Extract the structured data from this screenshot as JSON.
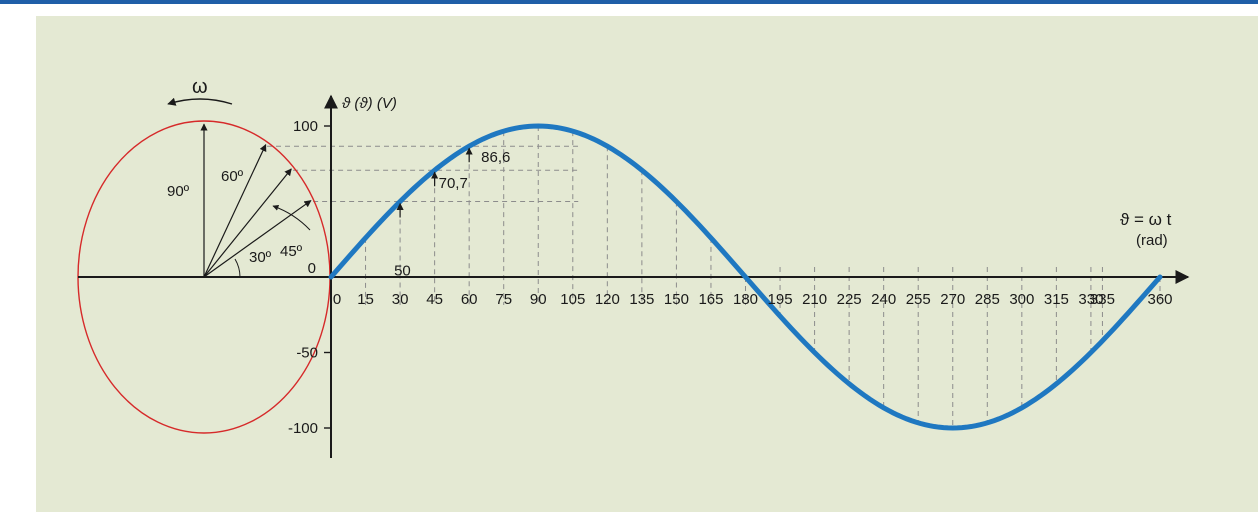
{
  "colors": {
    "frame_rule": "#1f5fa8",
    "panel_background": "#e4e9d3",
    "circle": "#d62a2a",
    "sine_wave": "#1f78c1",
    "axes": "#1a1a1a",
    "guide_lines": "#8c8c8c"
  },
  "phasor": {
    "omega_symbol": "ω",
    "rotation_arrow": "curved-arrow-icon",
    "angles": [
      {
        "deg": 90,
        "label": "90º"
      },
      {
        "deg": 60,
        "label": "60º"
      },
      {
        "deg": 45,
        "label": "45º"
      },
      {
        "deg": 30,
        "label": "30º"
      }
    ]
  },
  "chart_data": {
    "type": "line",
    "function": "100·sin(θ)",
    "xlabel": "ϑ = ω t",
    "xunit": "(rad)",
    "ylabel": "ϑ (ϑ) (V)",
    "xlim": [
      0,
      360
    ],
    "ylim": [
      -100,
      100
    ],
    "x_ticks": [
      0,
      15,
      30,
      45,
      60,
      75,
      90,
      105,
      120,
      135,
      150,
      165,
      180,
      195,
      210,
      225,
      240,
      255,
      270,
      285,
      300,
      315,
      330,
      335,
      360
    ],
    "y_ticks": [
      {
        "value": 100,
        "label": "100"
      },
      {
        "value": 0,
        "label": "0"
      },
      {
        "value": -50,
        "label": "-50"
      },
      {
        "value": -100,
        "label": "-100"
      }
    ],
    "annotations": [
      {
        "x": 30,
        "y": 50,
        "label": "50"
      },
      {
        "x": 45,
        "y": 70.7,
        "label": "70,7"
      },
      {
        "x": 60,
        "y": 86.6,
        "label": "86,6"
      }
    ],
    "grid": "dashed-vertical-drops"
  }
}
